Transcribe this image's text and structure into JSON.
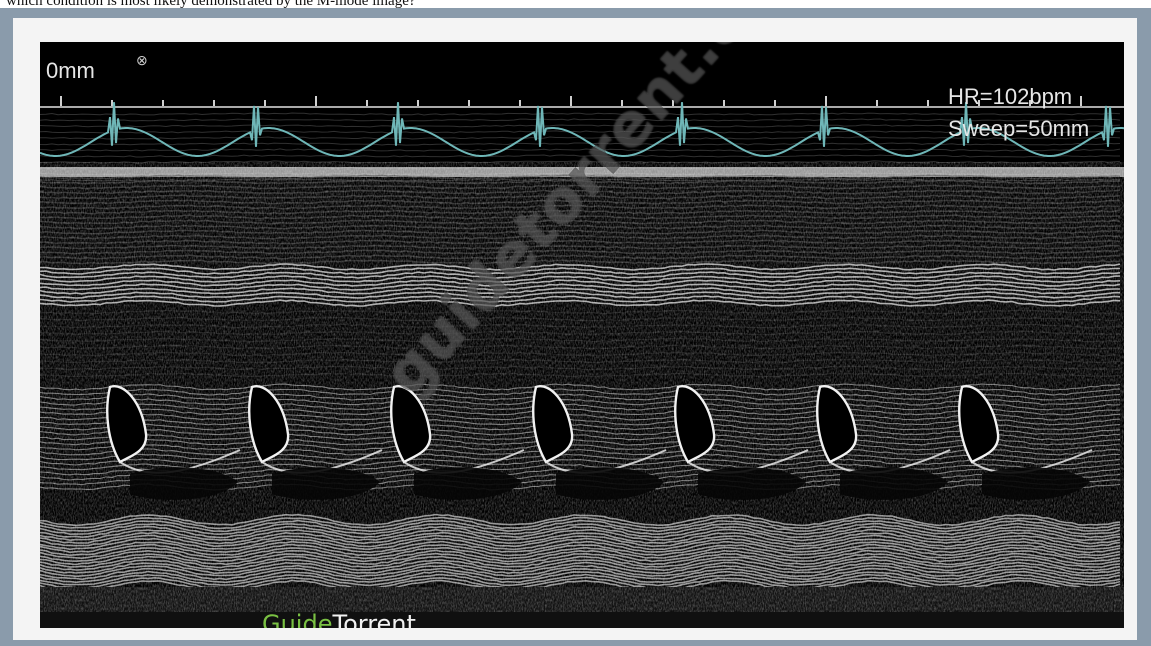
{
  "caption": {
    "text": "which condition is most likely demonstrated by the M-mode image?"
  },
  "overlay": {
    "depth": "0mm",
    "depth_icon": "settings-icon",
    "heart_rate": "HR=102bpm",
    "sweep": "Sweep=50mm"
  },
  "watermark": {
    "text": "guidetorrent.com"
  },
  "brand": {
    "part1": "Guide",
    "part2": "Torrent"
  },
  "colors": {
    "frame": "#8a9bab",
    "ecg_trace": "#6fb7b8",
    "brand_green": "#7ac143"
  }
}
